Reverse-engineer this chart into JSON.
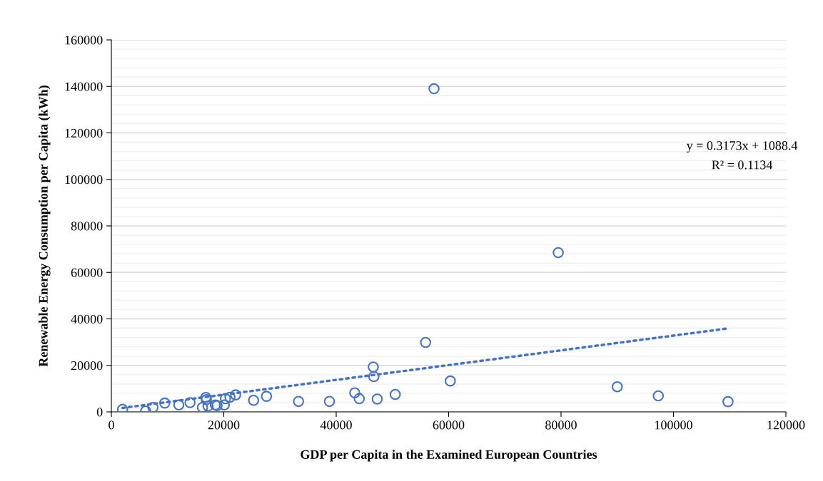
{
  "chart_data": {
    "type": "scatter",
    "xlabel": "GDP per Capita in the Examined European Countries",
    "ylabel": "Renewable Energy Consumption per Capita (kWh)",
    "annotations": [
      "y = 0.3173x + 1088.4",
      "R² = 0.1134"
    ],
    "series": [
      {
        "color": "#4472c4",
        "marker": "circle",
        "x": [
          2000,
          6100,
          7400,
          9500,
          12000,
          14000,
          16800,
          16900,
          16200,
          17200,
          18500,
          18800,
          20100,
          20300,
          21100,
          22100,
          25300,
          27600,
          33300,
          38800,
          43300,
          44100,
          46600,
          46700,
          47300,
          50500,
          55900,
          57400,
          60300,
          79500,
          90000,
          97300,
          109700
        ],
        "values": [
          1100,
          400,
          1900,
          3800,
          3000,
          4000,
          6200,
          5300,
          1900,
          2500,
          3000,
          2700,
          3000,
          5700,
          6300,
          7300,
          5000,
          6700,
          4500,
          4500,
          8200,
          5700,
          19300,
          15200,
          5500,
          7500,
          29900,
          139000,
          13300,
          68500,
          10800,
          6900,
          4400
        ]
      },
      {
        "type": "line",
        "color": "#4472c4",
        "line_style": "dotted",
        "x": [
          2000,
          109700
        ],
        "values": [
          1700,
          35900
        ]
      }
    ],
    "xlim": [
      0,
      120000
    ],
    "xticks": [
      0,
      20000,
      40000,
      60000,
      80000,
      100000,
      120000
    ],
    "ylim": [
      0,
      160000
    ],
    "yticks": [
      0,
      20000,
      40000,
      60000,
      80000,
      100000,
      120000,
      140000,
      160000
    ],
    "grid": "y",
    "legend": false
  }
}
